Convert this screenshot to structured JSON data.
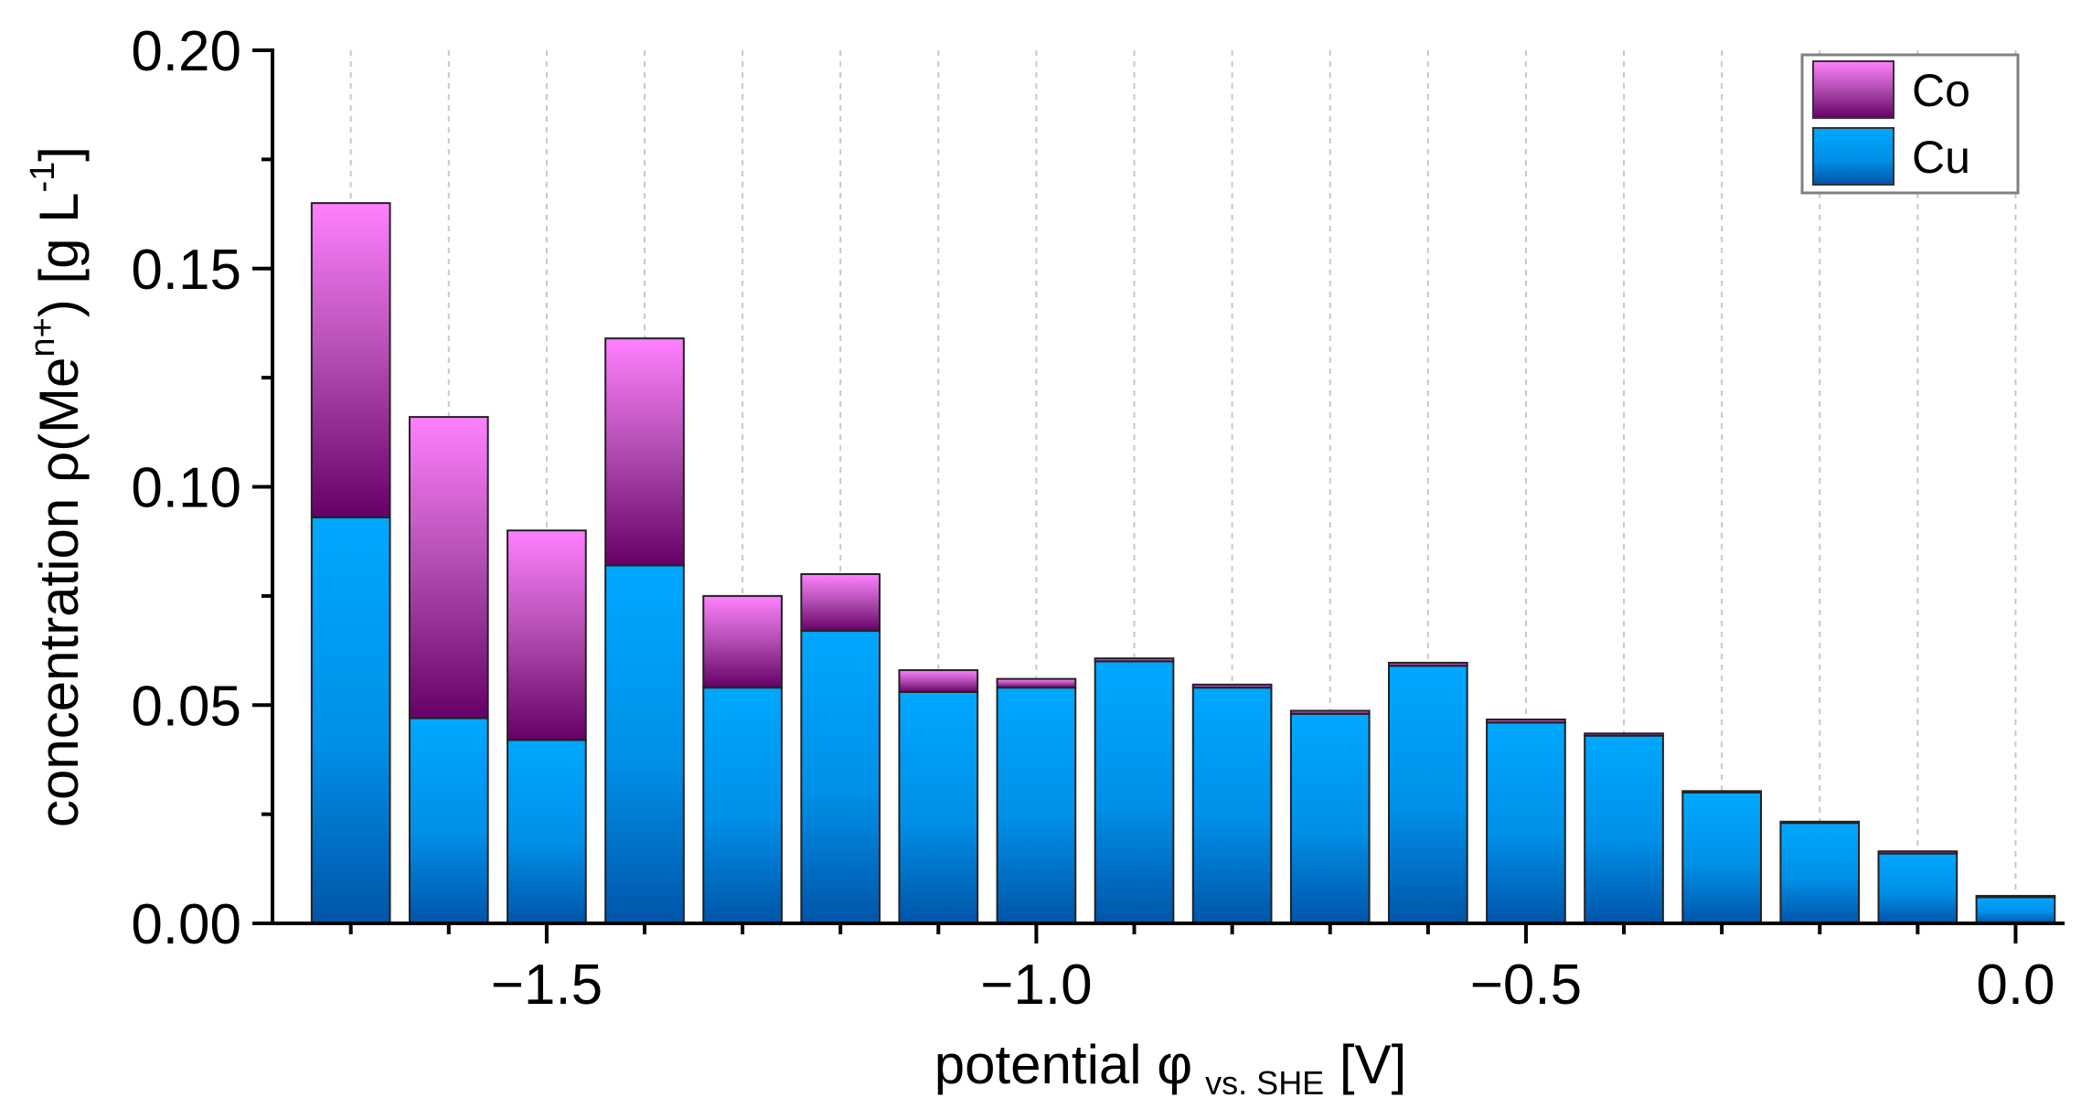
{
  "chart_data": {
    "type": "bar",
    "stacked": true,
    "x": [
      -1.7,
      -1.6,
      -1.5,
      -1.4,
      -1.3,
      -1.2,
      -1.1,
      -1.0,
      -0.9,
      -0.8,
      -0.7,
      -0.6,
      -0.5,
      -0.4,
      -0.3,
      -0.2,
      -0.1,
      0.0
    ],
    "series": [
      {
        "name": "Cu",
        "colors": [
          "#00a8ff",
          "#0055a8"
        ],
        "values": [
          0.093,
          0.047,
          0.042,
          0.082,
          0.054,
          0.067,
          0.053,
          0.054,
          0.06,
          0.054,
          0.048,
          0.059,
          0.046,
          0.043,
          0.03,
          0.023,
          0.016,
          0.006
        ]
      },
      {
        "name": "Co",
        "colors": [
          "#ff80ff",
          "#660066"
        ],
        "values": [
          0.072,
          0.069,
          0.048,
          0.052,
          0.021,
          0.013,
          0.005,
          0.002,
          0.0007,
          0.0007,
          0.0007,
          0.0007,
          0.0007,
          0.0005,
          0.0003,
          0.0003,
          0.0005,
          0.0003
        ]
      }
    ],
    "xlim": [
      -1.78,
      0.05
    ],
    "ylim": [
      0,
      0.2
    ],
    "x_ticks": [
      -1.5,
      -1.0,
      -0.5,
      0.0
    ],
    "x_tick_labels": [
      "−1.5",
      "−1.0",
      "−0.5",
      "0.0"
    ],
    "y_ticks": [
      0,
      0.05,
      0.1,
      0.15,
      0.2
    ],
    "y_tick_labels": [
      "0.00",
      "0.05",
      "0.10",
      "0.15",
      "0.20"
    ],
    "xlabel": {
      "main": "potential φ",
      "sub": "vs. SHE",
      "unit": " [V]"
    },
    "ylabel": {
      "pre": "concentration ρ(Me",
      "sup1": "n+",
      "mid": ") [g L",
      "sup2": "-1",
      "post": "]"
    },
    "legend": {
      "position": "top-right",
      "entries": [
        "Co",
        "Cu"
      ]
    },
    "grid": {
      "x": true,
      "y": false
    }
  }
}
